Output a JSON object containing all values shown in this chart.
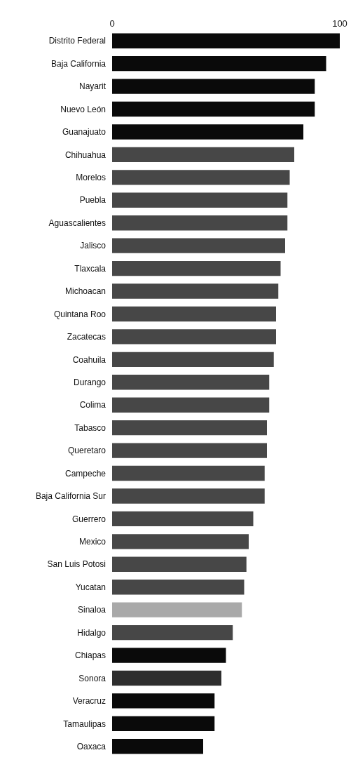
{
  "chart_data": {
    "type": "bar",
    "orientation": "horizontal",
    "categories": [
      "Distrito Federal",
      "Baja California",
      "Nayarit",
      "Nuevo León",
      "Guanajuato",
      "Chihuahua",
      "Morelos",
      "Puebla",
      "Aguascalientes",
      "Jalisco",
      "Tlaxcala",
      "Michoacan",
      "Quintana Roo",
      "Zacatecas",
      "Coahuila",
      "Durango",
      "Colima",
      "Tabasco",
      "Queretaro",
      "Campeche",
      "Baja California Sur",
      "Guerrero",
      "Mexico",
      "San Luis Potosi",
      "Yucatan",
      "Sinaloa",
      "Hidalgo",
      "Chiapas",
      "Sonora",
      "Veracruz",
      "Tamaulipas",
      "Oaxaca"
    ],
    "values": [
      100,
      94,
      89,
      89,
      84,
      80,
      78,
      77,
      77,
      76,
      74,
      73,
      72,
      72,
      71,
      69,
      69,
      68,
      68,
      67,
      67,
      62,
      60,
      59,
      58,
      57,
      53,
      50,
      48,
      45,
      45,
      40
    ],
    "colors": [
      "#0a0a0a",
      "#0a0a0a",
      "#0a0a0a",
      "#0a0a0a",
      "#0a0a0a",
      "#474747",
      "#474747",
      "#474747",
      "#474747",
      "#474747",
      "#474747",
      "#474747",
      "#474747",
      "#474747",
      "#474747",
      "#474747",
      "#474747",
      "#474747",
      "#474747",
      "#474747",
      "#474747",
      "#474747",
      "#474747",
      "#474747",
      "#474747",
      "#a9a9a9",
      "#474747",
      "#0a0a0a",
      "#2e2e2e",
      "#0a0a0a",
      "#0a0a0a",
      "#0a0a0a"
    ],
    "xlim": [
      0,
      100
    ],
    "xticks": [
      0,
      100
    ]
  }
}
